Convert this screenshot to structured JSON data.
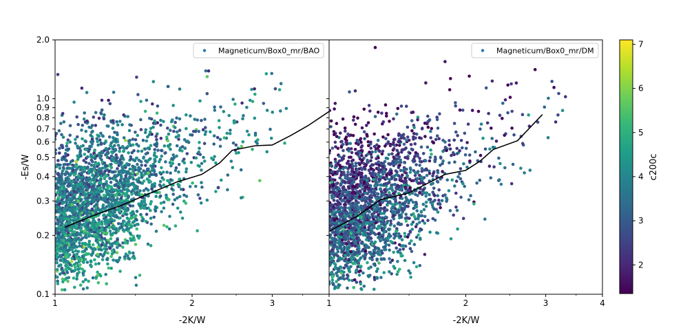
{
  "chart_data": [
    {
      "type": "scatter",
      "xlabel": "-2K/W",
      "ylabel": "-Es/W",
      "xscale": "log",
      "yscale": "log",
      "xlim": [
        1,
        4
      ],
      "ylim": [
        0.1,
        2.0
      ],
      "x_ticks": [
        {
          "value": 1,
          "label": "1"
        },
        {
          "value": 2,
          "label": "2"
        },
        {
          "value": 3,
          "label": "3"
        }
      ],
      "y_ticks": [
        {
          "value": 0.1,
          "label": "0.1"
        },
        {
          "value": 0.2,
          "label": "0.2"
        },
        {
          "value": 0.3,
          "label": "0.3"
        },
        {
          "value": 0.4,
          "label": "0.4"
        },
        {
          "value": 0.5,
          "label": "0.5"
        },
        {
          "value": 0.6,
          "label": "0.6"
        },
        {
          "value": 0.7,
          "label": "0.7"
        },
        {
          "value": 0.8,
          "label": "0.8"
        },
        {
          "value": 0.9,
          "label": "0.9"
        },
        {
          "value": 1.0,
          "label": "1.0"
        },
        {
          "value": 2.0,
          "label": "2.0"
        }
      ],
      "legend": {
        "label": "Magneticum/Box0_mr/BAO",
        "marker_color": "#1f77b4",
        "location": "upper right"
      },
      "color_variable": "c200c",
      "points_summary": {
        "x_center": 1.4,
        "x_spread": 0.12,
        "y_intercept": 0.24,
        "y_slope": 1.05,
        "y_spread": 0.19,
        "c_mean": 3.9,
        "c_spread": 0.75,
        "c_slope": -1.6,
        "approx_count": 2600
      },
      "median_line": {
        "color": "#000000",
        "x": [
          1.05,
          1.2,
          1.4,
          1.6,
          1.85,
          2.1,
          2.3,
          2.45,
          2.75,
          3.0,
          3.3,
          3.6,
          4.0
        ],
        "y": [
          0.22,
          0.25,
          0.285,
          0.325,
          0.375,
          0.41,
          0.47,
          0.545,
          0.575,
          0.58,
          0.65,
          0.73,
          0.86
        ]
      }
    },
    {
      "type": "scatter",
      "xlabel": "-2K/W",
      "ylabel": "",
      "xscale": "log",
      "yscale": "log",
      "xlim": [
        1,
        4
      ],
      "ylim": [
        0.1,
        2.0
      ],
      "x_ticks": [
        {
          "value": 1,
          "label": "1"
        },
        {
          "value": 2,
          "label": "2"
        },
        {
          "value": 3,
          "label": "3"
        },
        {
          "value": 4,
          "label": "4"
        }
      ],
      "legend": {
        "label": "Magneticum/Box0_mr/DM",
        "marker_color": "#1f77b4",
        "location": "upper right"
      },
      "color_variable": "c200c",
      "points_summary": {
        "x_center": 1.3,
        "x_spread": 0.11,
        "y_intercept": 0.22,
        "y_slope": 1.2,
        "y_spread": 0.2,
        "c_mean": 2.9,
        "c_spread": 0.8,
        "c_slope": -2.4,
        "approx_count": 2300
      },
      "median_line": {
        "color": "#000000",
        "x": [
          1.0,
          1.15,
          1.3,
          1.5,
          1.65,
          1.8,
          2.0,
          2.15,
          2.3,
          2.6,
          2.95
        ],
        "y": [
          0.21,
          0.25,
          0.305,
          0.33,
          0.37,
          0.41,
          0.43,
          0.48,
          0.55,
          0.61,
          0.83
        ]
      }
    }
  ],
  "colorbar": {
    "label": "c200c",
    "range": [
      1.35,
      7.1
    ],
    "ticks": [
      {
        "value": 2,
        "label": "2"
      },
      {
        "value": 3,
        "label": "3"
      },
      {
        "value": 4,
        "label": "4"
      },
      {
        "value": 5,
        "label": "5"
      },
      {
        "value": 6,
        "label": "6"
      },
      {
        "value": 7,
        "label": "7"
      }
    ],
    "colormap": "viridis",
    "stops": [
      "#440154",
      "#482878",
      "#3e4989",
      "#31688e",
      "#26828e",
      "#1f9e89",
      "#35b779",
      "#6ece58",
      "#b5de2b",
      "#fde725"
    ]
  }
}
